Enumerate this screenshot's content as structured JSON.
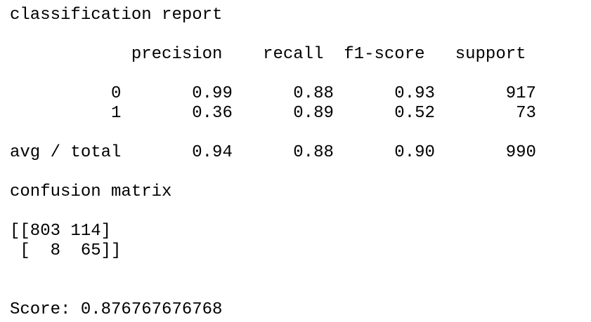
{
  "report": {
    "title": "classification report",
    "header": "            precision    recall  f1-score   support",
    "rows": [
      "          0       0.99      0.88      0.93       917",
      "          1       0.36      0.89      0.52        73"
    ],
    "total": "avg / total       0.94      0.88      0.90       990"
  },
  "confusion": {
    "title": "confusion matrix",
    "rows": [
      "[[803 114]",
      " [  8  65]]"
    ]
  },
  "score": {
    "text": "Score: 0.876767676768"
  }
}
